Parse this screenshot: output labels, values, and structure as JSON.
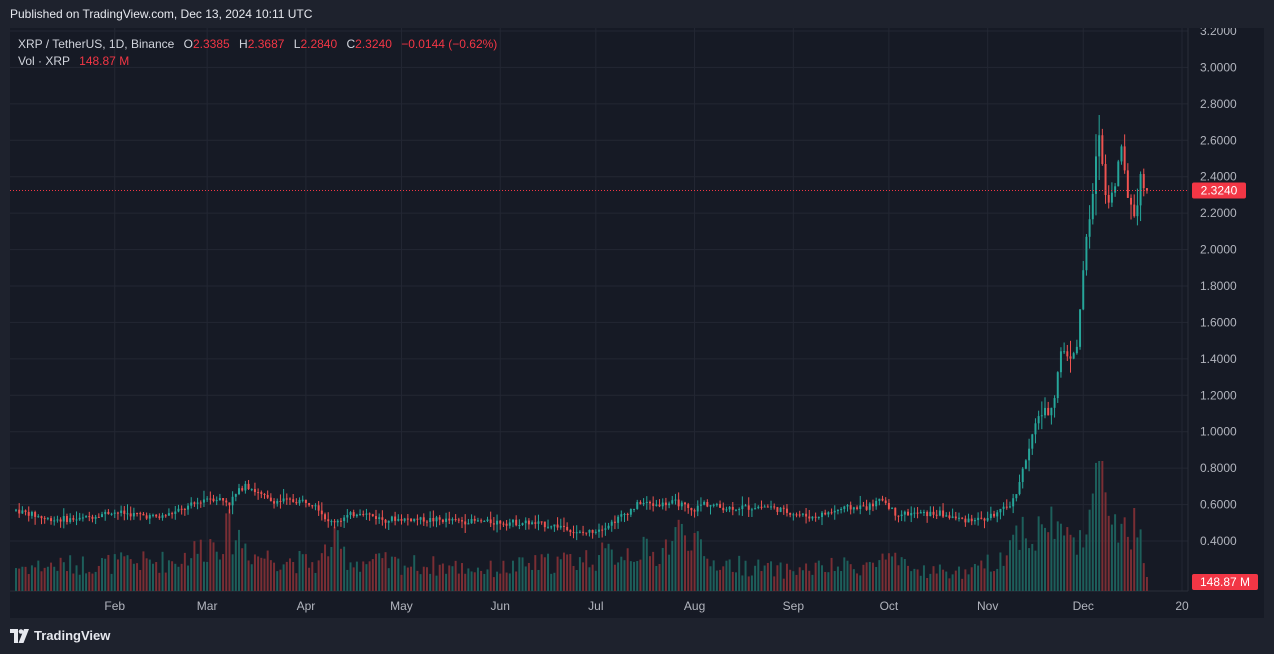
{
  "header": {
    "published": "Published on TradingView.com, Dec 13, 2024 10:11 UTC"
  },
  "legend": {
    "symbol": "XRP / TetherUS, 1D, Binance",
    "open_label": "O",
    "open": "2.3385",
    "high_label": "H",
    "high": "2.3687",
    "low_label": "L",
    "low": "2.2840",
    "close_label": "C",
    "close": "2.3240",
    "change": "−0.0144 (−0.62%)",
    "vol_label": "Vol · XRP",
    "vol": "148.87 M"
  },
  "colors": {
    "up": "#26a69a",
    "down": "#ef5350",
    "up_vol": "#1d5f5b",
    "down_vol": "#7a2e34",
    "last": "#f23645",
    "grid": "#232733",
    "axis_text": "#b2b5be"
  },
  "footer": {
    "brand": "TradingView",
    "logo_icon": "tradingview-logo-icon"
  },
  "chart_data": {
    "type": "candlestick",
    "title": "XRP / TetherUS, 1D, Binance",
    "y_ticks": [
      "3.2000",
      "3.0000",
      "2.8000",
      "2.6000",
      "2.4000",
      "2.2000",
      "2.0000",
      "1.8000",
      "1.6000",
      "1.4000",
      "1.2000",
      "1.0000",
      "0.8000",
      "0.6000",
      "0.4000"
    ],
    "ylim": [
      0.2,
      3.2
    ],
    "x_ticks": [
      "Feb",
      "Mar",
      "Apr",
      "May",
      "Jun",
      "Jul",
      "Aug",
      "Sep",
      "Oct",
      "Nov",
      "Dec",
      "20"
    ],
    "x_tick_days": [
      31,
      60,
      91,
      121,
      152,
      182,
      213,
      244,
      274,
      305,
      335,
      366
    ],
    "last_price": 2.324,
    "last_price_label": "2.3240",
    "last_volume_label": "148.87 M",
    "volume_max": 1,
    "anchors": [
      [
        0,
        0.57
      ],
      [
        10,
        0.52
      ],
      [
        20,
        0.52
      ],
      [
        30,
        0.56
      ],
      [
        35,
        0.55
      ],
      [
        45,
        0.53
      ],
      [
        52,
        0.57
      ],
      [
        57,
        0.61
      ],
      [
        60,
        0.64
      ],
      [
        64,
        0.63
      ],
      [
        67,
        0.61
      ],
      [
        72,
        0.72
      ],
      [
        76,
        0.66
      ],
      [
        80,
        0.62
      ],
      [
        90,
        0.62
      ],
      [
        94,
        0.61
      ],
      [
        98,
        0.5
      ],
      [
        102,
        0.52
      ],
      [
        108,
        0.56
      ],
      [
        115,
        0.52
      ],
      [
        125,
        0.52
      ],
      [
        140,
        0.51
      ],
      [
        160,
        0.5
      ],
      [
        172,
        0.48
      ],
      [
        176,
        0.44
      ],
      [
        180,
        0.45
      ],
      [
        186,
        0.49
      ],
      [
        192,
        0.56
      ],
      [
        196,
        0.61
      ],
      [
        200,
        0.6
      ],
      [
        208,
        0.61
      ],
      [
        212,
        0.56
      ],
      [
        216,
        0.61
      ],
      [
        222,
        0.58
      ],
      [
        236,
        0.59
      ],
      [
        242,
        0.56
      ],
      [
        250,
        0.53
      ],
      [
        260,
        0.58
      ],
      [
        268,
        0.59
      ],
      [
        272,
        0.63
      ],
      [
        276,
        0.55
      ],
      [
        290,
        0.55
      ],
      [
        296,
        0.52
      ],
      [
        304,
        0.52
      ],
      [
        310,
        0.57
      ],
      [
        313,
        0.62
      ],
      [
        318,
        0.9
      ],
      [
        321,
        1.1
      ],
      [
        324,
        1.1
      ],
      [
        326,
        1.2
      ],
      [
        328,
        1.45
      ],
      [
        330,
        1.42
      ],
      [
        333,
        1.45
      ],
      [
        335,
        1.9
      ],
      [
        338,
        2.3
      ],
      [
        340,
        2.65
      ],
      [
        342,
        2.3
      ],
      [
        344,
        2.3
      ],
      [
        347,
        2.55
      ],
      [
        349,
        2.3
      ],
      [
        351,
        2.2
      ],
      [
        353,
        2.38
      ],
      [
        355,
        2.33
      ]
    ],
    "volume_anchors": [
      [
        0,
        0.2
      ],
      [
        50,
        0.25
      ],
      [
        60,
        0.38
      ],
      [
        68,
        0.5
      ],
      [
        75,
        0.3
      ],
      [
        95,
        0.22
      ],
      [
        99,
        0.42
      ],
      [
        105,
        0.25
      ],
      [
        150,
        0.18
      ],
      [
        182,
        0.28
      ],
      [
        196,
        0.35
      ],
      [
        200,
        0.28
      ],
      [
        211,
        0.55
      ],
      [
        216,
        0.25
      ],
      [
        240,
        0.17
      ],
      [
        270,
        0.22
      ],
      [
        272,
        0.28
      ],
      [
        280,
        0.18
      ],
      [
        300,
        0.15
      ],
      [
        310,
        0.3
      ],
      [
        316,
        0.55
      ],
      [
        320,
        0.45
      ],
      [
        325,
        0.6
      ],
      [
        330,
        0.42
      ],
      [
        336,
        0.55
      ],
      [
        340,
        0.98
      ],
      [
        344,
        0.7
      ],
      [
        348,
        0.45
      ],
      [
        352,
        0.55
      ],
      [
        355,
        0.1
      ]
    ]
  }
}
